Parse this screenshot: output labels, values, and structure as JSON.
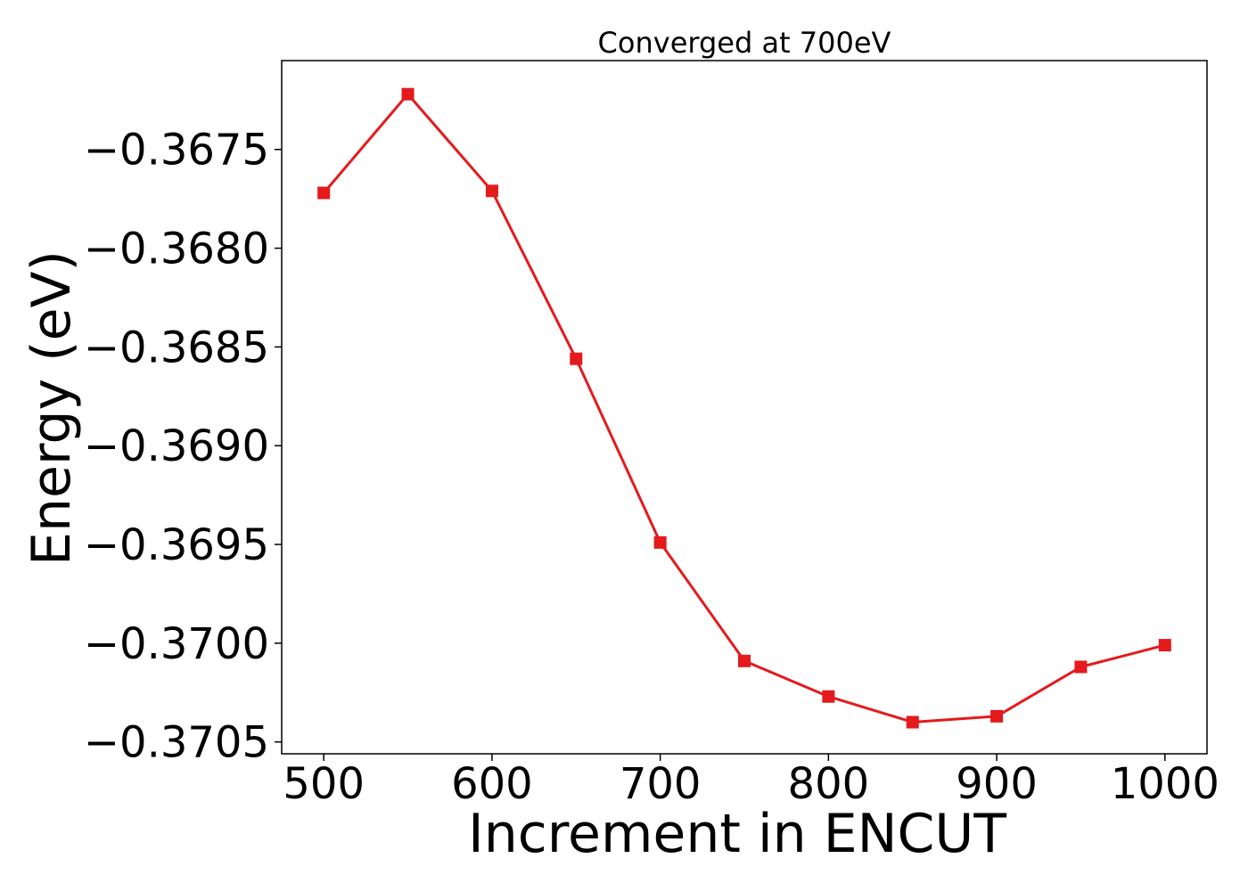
{
  "chart_data": {
    "type": "line",
    "title": "Converged at 700eV",
    "xlabel": "Increment in ENCUT",
    "ylabel": "Energy (eV)",
    "xlim": [
      475,
      1025
    ],
    "ylim": [
      -0.37056,
      -0.36705
    ],
    "xticks": [
      500,
      600,
      700,
      800,
      900,
      1000
    ],
    "xtick_labels": [
      "500",
      "600",
      "700",
      "800",
      "900",
      "1000"
    ],
    "yticks": [
      -0.3675,
      -0.368,
      -0.3685,
      -0.369,
      -0.3695,
      -0.37,
      -0.3705
    ],
    "ytick_labels": [
      "−0.3675",
      "−0.3680",
      "−0.3685",
      "−0.3690",
      "−0.3695",
      "−0.3700",
      "−0.3705"
    ],
    "grid": false,
    "series": [
      {
        "color": "#e41a1c",
        "marker": "square",
        "x": [
          500,
          550,
          600,
          650,
          700,
          750,
          800,
          850,
          900,
          950,
          1000
        ],
        "y": [
          -0.36772,
          -0.36722,
          -0.36771,
          -0.36856,
          -0.36949,
          -0.37009,
          -0.37027,
          -0.3704,
          -0.37037,
          -0.37012,
          -0.37001
        ]
      }
    ]
  }
}
